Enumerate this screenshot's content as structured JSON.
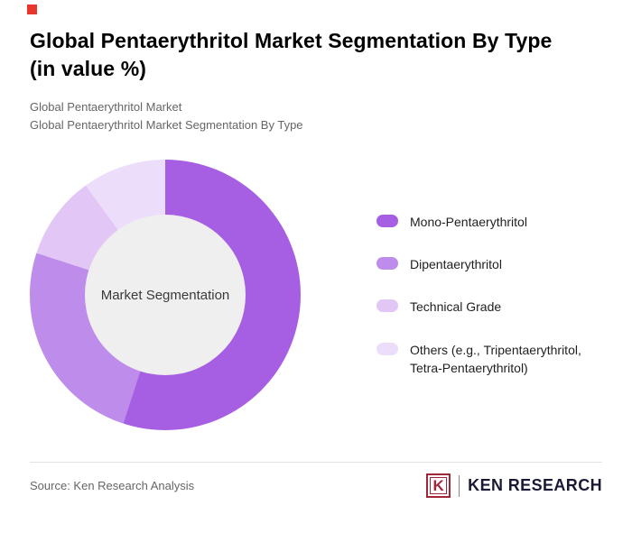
{
  "header": {
    "title_line1": "Global Pentaerythritol Market Segmentation By Type",
    "title_line2": "(in value %)",
    "subtitle1": "Global Pentaerythritol Market",
    "subtitle2": "Global Pentaerythritol Market Segmentation By Type"
  },
  "chart_data": {
    "type": "pie",
    "donut": true,
    "title": "Global Pentaerythritol Market Segmentation By Type (in value %)",
    "center_label": "Market Segmentation",
    "legend_position": "right",
    "hole_color": "#efefef",
    "segments": [
      {
        "label": "Mono-Pentaerythritol",
        "value": 55,
        "color": "#a65fe2"
      },
      {
        "label": "Dipentaerythritol",
        "value": 25,
        "color": "#be8dec"
      },
      {
        "label": "Technical Grade",
        "value": 10,
        "color": "#e2c6f6"
      },
      {
        "label": "Others (e.g., Tripentaerythritol, Tetra-Pentaerythritol)",
        "value": 10,
        "color": "#ecdefa"
      }
    ]
  },
  "footer": {
    "source": "Source: Ken Research Analysis",
    "logo": {
      "emblem_letter": "K",
      "brand": "KEN RESEARCH"
    }
  },
  "decorations": {
    "corner_mark_color": "#e8352e"
  }
}
